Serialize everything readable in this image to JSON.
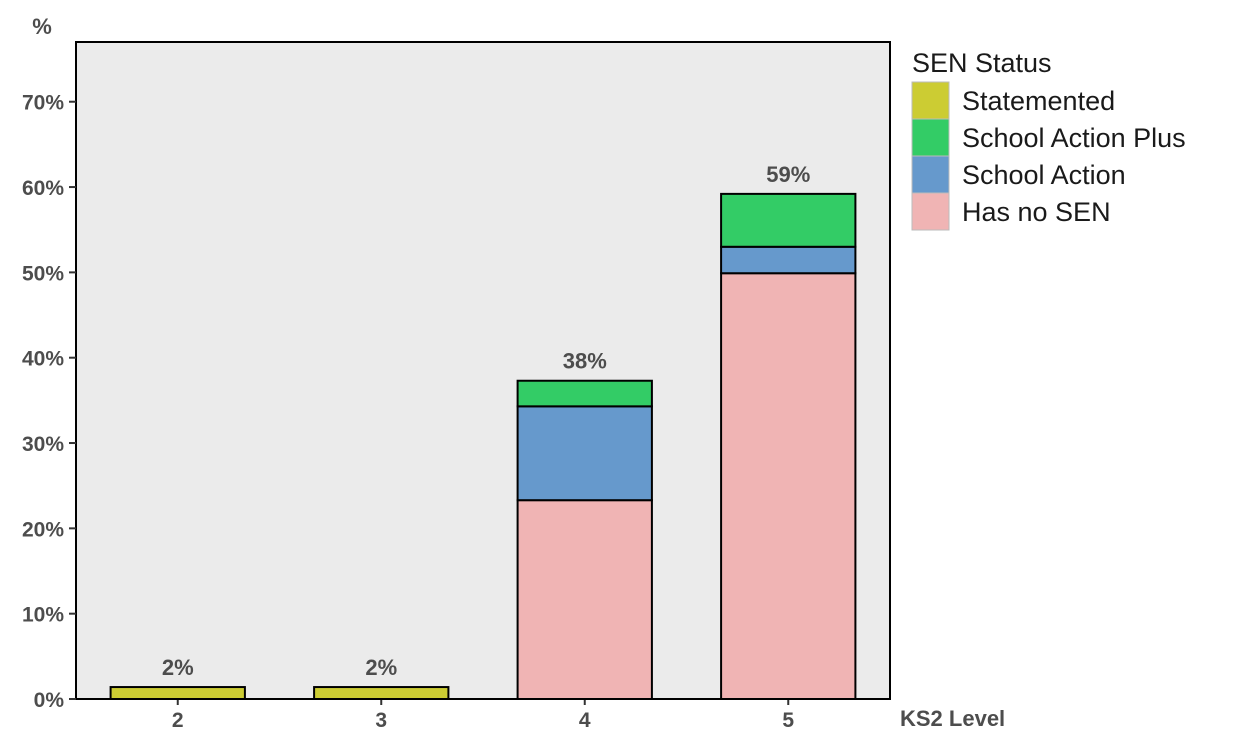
{
  "chart_data": {
    "type": "bar",
    "stacked": true,
    "title": "",
    "xlabel": "KS2 Level",
    "ylabel": "%",
    "categories": [
      "2",
      "3",
      "4",
      "5"
    ],
    "ylim": [
      0,
      77
    ],
    "yticks": [
      0,
      10,
      20,
      30,
      40,
      50,
      60,
      70
    ],
    "ytick_labels": [
      "0%",
      "10%",
      "20%",
      "30%",
      "40%",
      "50%",
      "60%",
      "70%"
    ],
    "legend_title": "SEN Status",
    "legend_position": "right",
    "grid": false,
    "series": [
      {
        "name": "Has no SEN",
        "color": "#f0b4b4",
        "values": [
          0,
          0,
          23.3,
          49.9
        ]
      },
      {
        "name": "School Action",
        "color": "#6699cc",
        "values": [
          0,
          0,
          11.0,
          3.1
        ]
      },
      {
        "name": "School Action Plus",
        "color": "#33cc66",
        "values": [
          0,
          0,
          3.0,
          6.2
        ]
      },
      {
        "name": "Statemented",
        "color": "#cccc33",
        "values": [
          1.4,
          1.4,
          0,
          0
        ]
      }
    ],
    "legend_order": [
      "Statemented",
      "School Action Plus",
      "School Action",
      "Has no SEN"
    ],
    "totals": [
      "2%",
      "2%",
      "38%",
      "59%"
    ],
    "plot_background": "#ebebeb"
  }
}
